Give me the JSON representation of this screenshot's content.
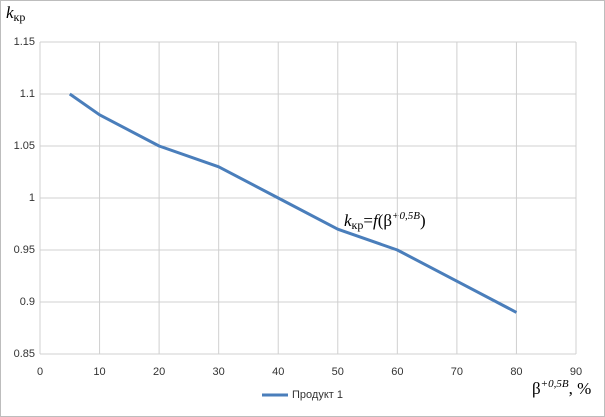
{
  "chart_data": {
    "type": "line",
    "y_label": [
      "k",
      "кр"
    ],
    "x_label": [
      "β",
      "+0,5B",
      ", %"
    ],
    "annotation": [
      "k",
      "кр",
      "=",
      "f",
      "(β",
      "+0,5B",
      ")"
    ],
    "x": [
      5,
      10,
      20,
      30,
      40,
      50,
      60,
      70,
      80
    ],
    "series": [
      {
        "name": "Продукт 1",
        "color": "#4a7ebb",
        "values": [
          1.1,
          1.08,
          1.05,
          1.03,
          1.0,
          0.97,
          0.95,
          0.92,
          0.89
        ]
      }
    ],
    "xlim": [
      0,
      90
    ],
    "xticks": [
      0,
      10,
      20,
      30,
      40,
      50,
      60,
      70,
      80,
      90
    ],
    "ylim": [
      0.85,
      1.15
    ],
    "yticks": [
      0.85,
      0.9,
      0.95,
      1,
      1.05,
      1.1,
      1.15
    ],
    "grid": true,
    "legend": "bottom"
  }
}
